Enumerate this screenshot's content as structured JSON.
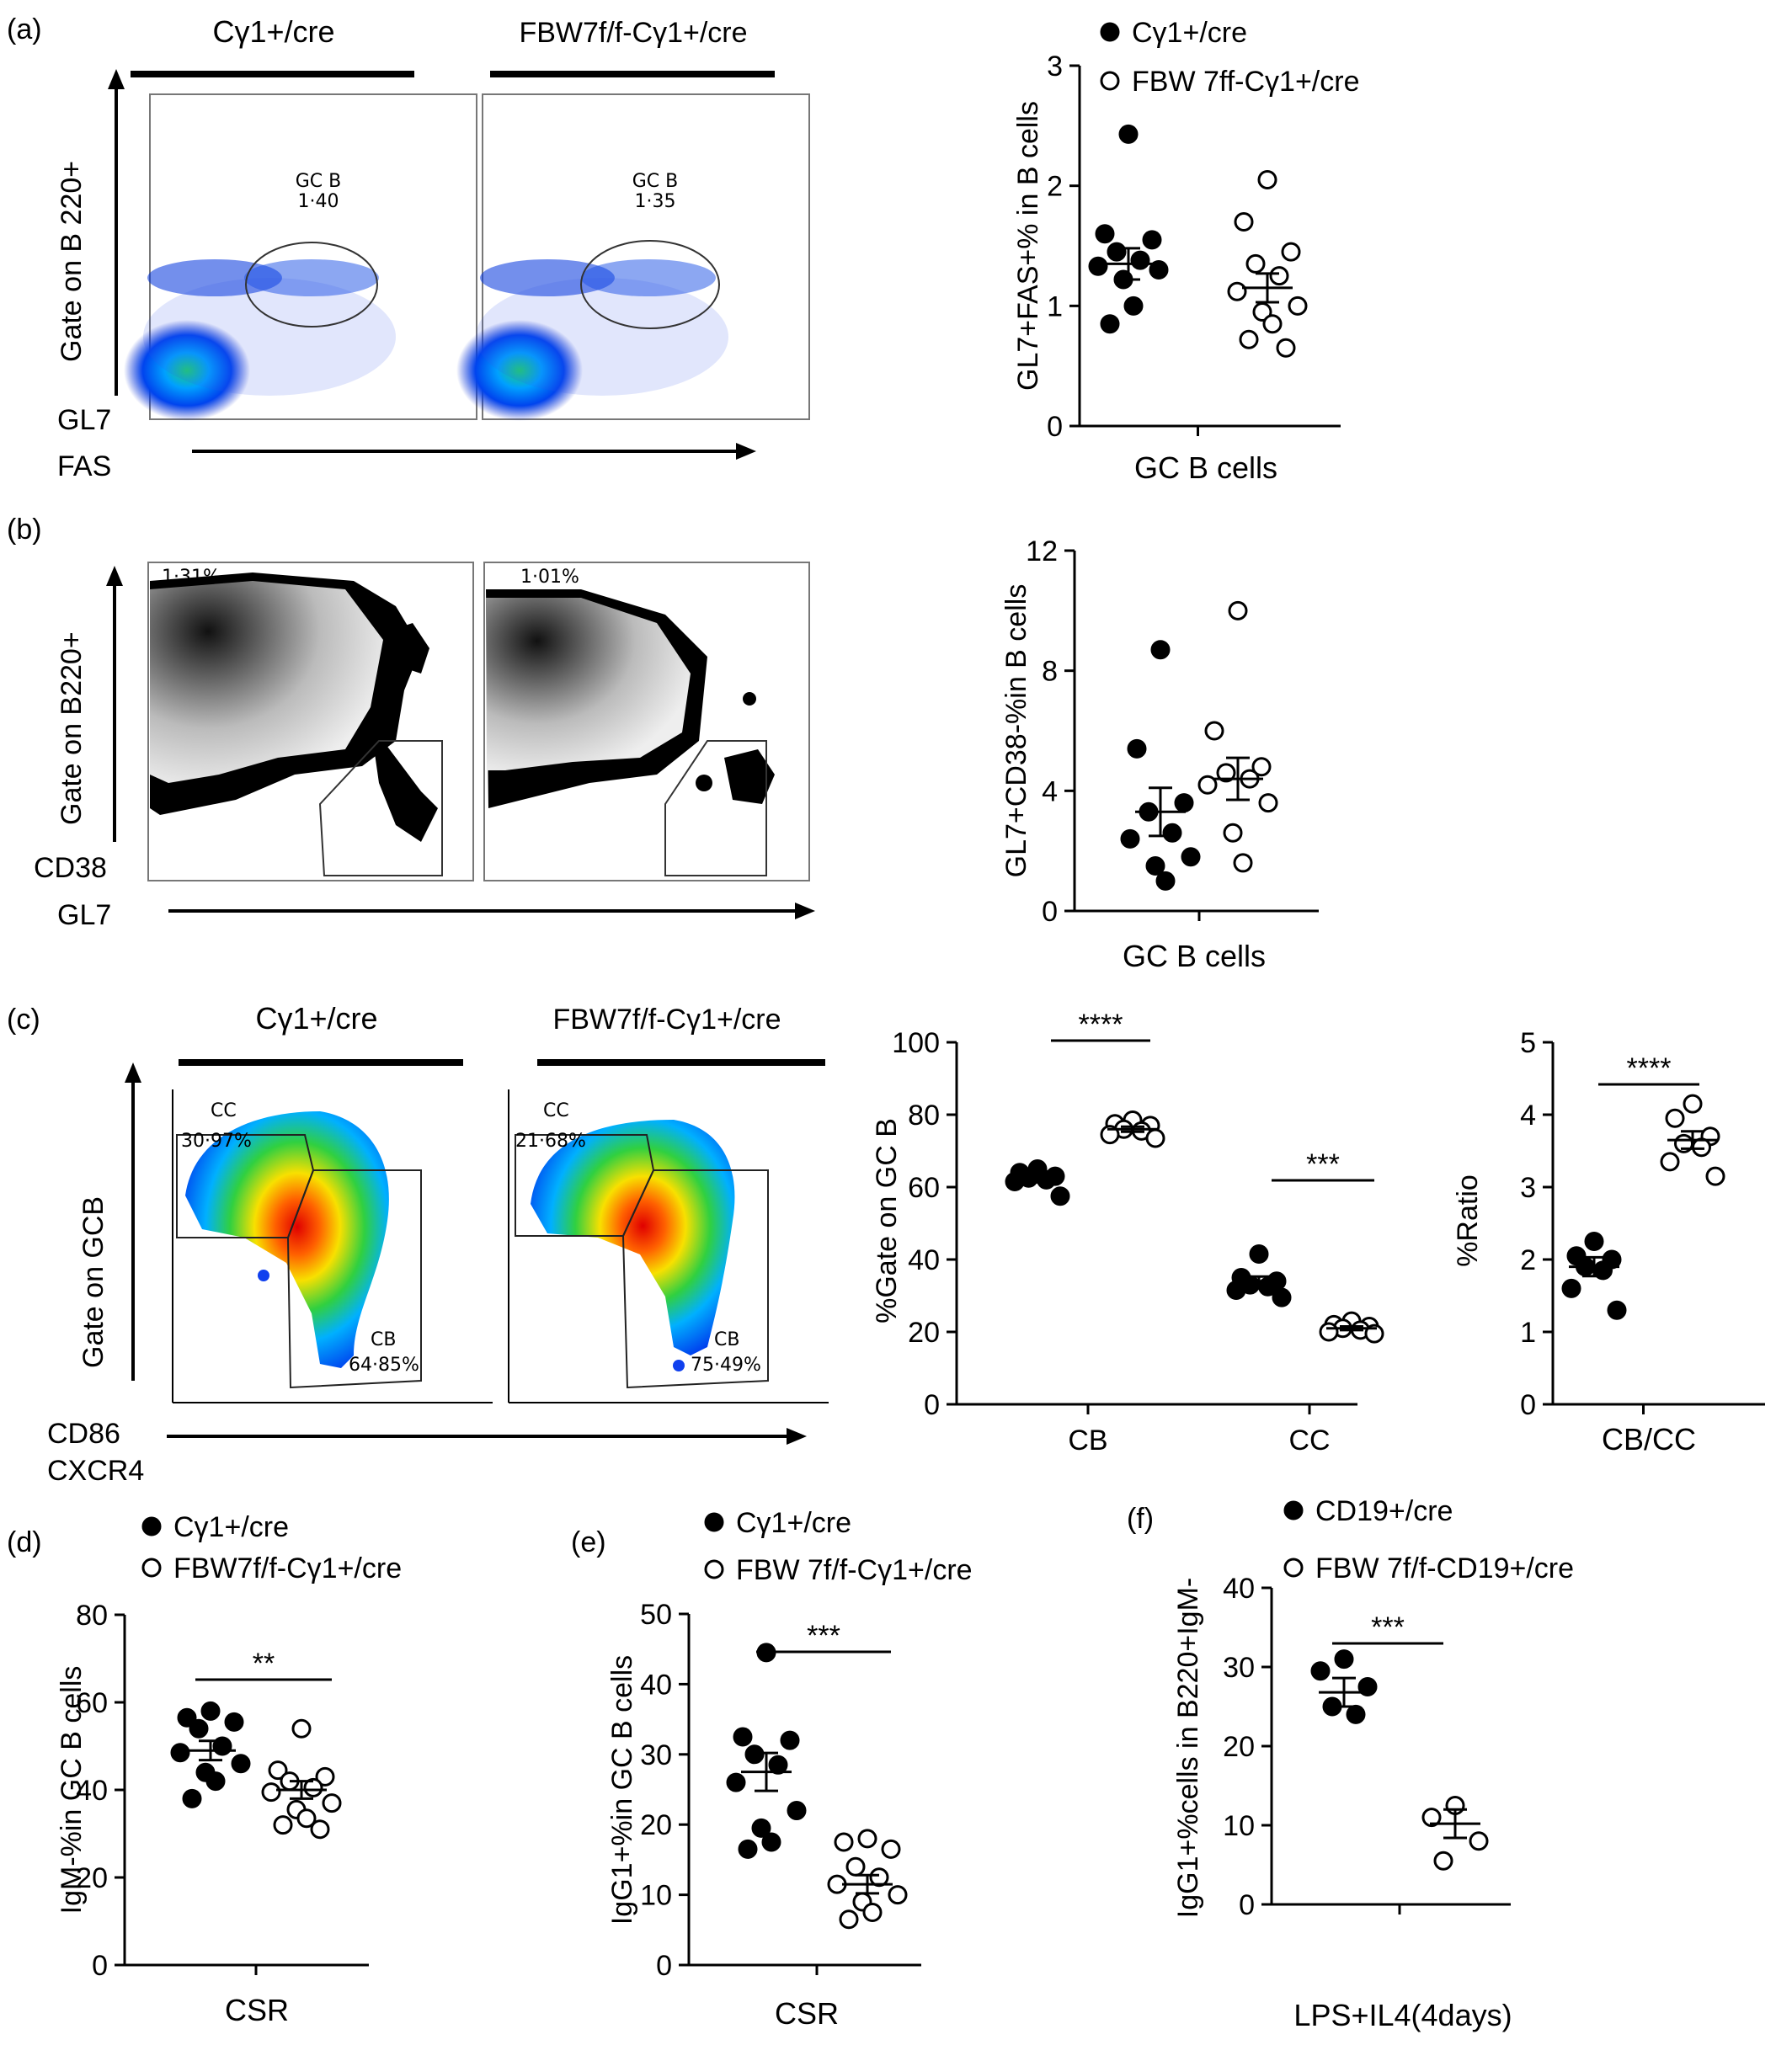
{
  "panels": {
    "a": {
      "label": "(a)"
    },
    "b": {
      "label": "(b)"
    },
    "c": {
      "label": "(c)"
    },
    "d": {
      "label": "(d)"
    },
    "e": {
      "label": "(e)"
    },
    "f": {
      "label": "(f)"
    }
  },
  "flow": {
    "a": {
      "group1": "Cγ1+/cre",
      "group2": "FBW7f/f-Cγ1+/cre",
      "ylabel": "Gate on B 220+",
      "ylabel_small": "GL7",
      "xlabel": "FAS",
      "gate_name_1": "GC B",
      "gate_value_1": "1·40",
      "gate_name_2": "GC B",
      "gate_value_2": "1·35"
    },
    "b": {
      "ylabel": "Gate on B220+",
      "ylabel_small": "CD38",
      "xlabel": "GL7",
      "value_1": "1·31%",
      "value_2": "1·01%"
    },
    "c": {
      "group1": "Cγ1+/cre",
      "group2": "FBW7f/f-Cγ1+/cre",
      "ylabel": "Gate on GCB",
      "ylabel_small_1": "CD86",
      "ylabel_small_2": "CXCR4",
      "cc_label_1": "CC",
      "cc_value_1": "30·97%",
      "cb_label_1": "CB",
      "cb_value_1": "64·85%",
      "cc_label_2": "CC",
      "cc_value_2": "21·68%",
      "cb_label_2": "CB",
      "cb_value_2": "75·49%"
    }
  },
  "chart_data": [
    {
      "id": "a-scatter",
      "type": "scatter",
      "xlabel": "GC B cells",
      "ylabel": "GL7+FAS+% in B cells",
      "ylim": [
        0,
        3
      ],
      "yticks": [
        "0",
        "1",
        "2",
        "3"
      ],
      "legend": [
        "Cγ1+/cre",
        "FBW 7ff-Cγ1+/cre"
      ],
      "series": [
        {
          "name": "Cγ1+/cre",
          "fill": "filled",
          "mean": 1.35,
          "sem": 0.13,
          "values": [
            2.43,
            1.6,
            1.55,
            1.45,
            1.38,
            1.33,
            1.3,
            1.22,
            1.0,
            0.85
          ]
        },
        {
          "name": "FBW 7ff-Cγ1+/cre",
          "fill": "open",
          "mean": 1.15,
          "sem": 0.12,
          "values": [
            2.05,
            1.7,
            1.45,
            1.35,
            1.25,
            1.12,
            1.0,
            0.95,
            0.85,
            0.72,
            0.65
          ]
        }
      ]
    },
    {
      "id": "b-scatter",
      "type": "scatter",
      "xlabel": "GC B cells",
      "ylabel": "GL7+CD38-%in B cells",
      "ylim": [
        0,
        12
      ],
      "yticks": [
        "0",
        "4",
        "8",
        "12"
      ],
      "series": [
        {
          "name": "Cγ1+/cre",
          "fill": "filled",
          "mean": 3.3,
          "sem": 0.8,
          "values": [
            8.7,
            5.4,
            3.6,
            3.3,
            2.6,
            2.4,
            1.8,
            1.5,
            1.0
          ]
        },
        {
          "name": "FBW7f/f-Cγ1+/cre",
          "fill": "open",
          "mean": 4.4,
          "sem": 0.7,
          "values": [
            10.0,
            6.0,
            4.8,
            4.6,
            4.4,
            4.2,
            3.6,
            2.6,
            1.6
          ]
        }
      ]
    },
    {
      "id": "c-percent",
      "type": "scatter",
      "categories": [
        "CB",
        "CC"
      ],
      "ylabel": "%Gate on GC B",
      "ylim": [
        0,
        100
      ],
      "yticks": [
        "0",
        "20",
        "40",
        "60",
        "80",
        "100"
      ],
      "significance": [
        "****",
        "***"
      ],
      "series": [
        {
          "name": "CB Cγ1+/cre",
          "fill": "filled",
          "mean": 62.5,
          "sem": 1.2,
          "values": [
            65.0,
            64.0,
            63.0,
            62.5,
            62.0,
            61.5,
            57.5
          ]
        },
        {
          "name": "CB FBW7f/f-Cγ1+/cre",
          "fill": "open",
          "mean": 76.0,
          "sem": 0.7,
          "values": [
            78.5,
            77.5,
            77.0,
            76.0,
            75.5,
            74.5,
            73.5
          ]
        },
        {
          "name": "CC Cγ1+/cre",
          "fill": "filled",
          "mean": 34.0,
          "sem": 1.3,
          "values": [
            41.5,
            35.0,
            34.0,
            33.0,
            32.5,
            31.5,
            29.5
          ]
        },
        {
          "name": "CC FBW7f/f-Cγ1+/cre",
          "fill": "open",
          "mean": 21.0,
          "sem": 0.5,
          "values": [
            23.0,
            22.0,
            21.5,
            21.0,
            20.5,
            20.0,
            19.5
          ]
        }
      ]
    },
    {
      "id": "c-ratio",
      "type": "scatter",
      "xlabel": "CB/CC",
      "ylabel": "%Ratio",
      "ylim": [
        0,
        5
      ],
      "yticks": [
        "0",
        "1",
        "2",
        "3",
        "4",
        "5"
      ],
      "significance": [
        "****"
      ],
      "series": [
        {
          "name": "Cγ1+/cre",
          "fill": "filled",
          "mean": 1.9,
          "sem": 0.13,
          "values": [
            2.25,
            2.05,
            2.0,
            1.9,
            1.85,
            1.6,
            1.3
          ]
        },
        {
          "name": "FBW7f/f-Cγ1+/cre",
          "fill": "open",
          "mean": 3.65,
          "sem": 0.12,
          "values": [
            4.15,
            3.95,
            3.7,
            3.6,
            3.55,
            3.35,
            3.15
          ]
        }
      ]
    },
    {
      "id": "d-scatter",
      "type": "scatter",
      "xlabel": "CSR",
      "ylabel": "IgM-%in GC B cells",
      "ylim": [
        0,
        80
      ],
      "yticks": [
        "0",
        "20",
        "40",
        "60",
        "80"
      ],
      "legend": [
        "Cγ1+/cre",
        "FBW7f/f-Cγ1+/cre"
      ],
      "significance": [
        "**"
      ],
      "series": [
        {
          "name": "Cγ1+/cre",
          "fill": "filled",
          "mean": 49.0,
          "sem": 2.2,
          "values": [
            58.0,
            56.5,
            55.5,
            54.0,
            50.0,
            48.5,
            46.0,
            44.0,
            42.0,
            38.0
          ]
        },
        {
          "name": "FBW7f/f-Cγ1+/cre",
          "fill": "open",
          "mean": 40.0,
          "sem": 2.0,
          "values": [
            54.0,
            44.5,
            43.0,
            42.0,
            40.5,
            39.5,
            37.0,
            35.5,
            33.5,
            32.0,
            31.0
          ]
        }
      ]
    },
    {
      "id": "e-scatter",
      "type": "scatter",
      "xlabel": "CSR",
      "ylabel": "IgG1+%in GC B cells",
      "ylim": [
        0,
        50
      ],
      "yticks": [
        "0",
        "10",
        "20",
        "30",
        "40",
        "50"
      ],
      "legend": [
        "Cγ1+/cre",
        "FBW 7f/f-Cγ1+/cre"
      ],
      "significance": [
        "***"
      ],
      "series": [
        {
          "name": "Cγ1+/cre",
          "fill": "filled",
          "mean": 27.5,
          "sem": 2.7,
          "values": [
            44.5,
            32.5,
            32.0,
            30.0,
            28.5,
            26.0,
            22.0,
            19.5,
            17.5,
            16.5
          ]
        },
        {
          "name": "FBW 7f/f-Cγ1+/cre",
          "fill": "open",
          "mean": 11.5,
          "sem": 1.3,
          "values": [
            18.0,
            17.5,
            16.5,
            14.0,
            12.5,
            11.5,
            10.0,
            9.0,
            7.5,
            6.5
          ]
        }
      ]
    },
    {
      "id": "f-scatter",
      "type": "scatter",
      "xlabel": "LPS+IL4(4days)",
      "ylabel": "IgG1+%cells in B220+IgM-",
      "ylim": [
        0,
        40
      ],
      "yticks": [
        "0",
        "10",
        "20",
        "30",
        "40"
      ],
      "legend": [
        "CD19+/cre",
        "FBW 7f/f-CD19+/cre"
      ],
      "significance": [
        "***"
      ],
      "series": [
        {
          "name": "CD19+/cre",
          "fill": "filled",
          "mean": 26.8,
          "sem": 1.8,
          "values": [
            31.0,
            29.5,
            27.5,
            25.0,
            24.0
          ]
        },
        {
          "name": "FBW 7f/f-CD19+/cre",
          "fill": "open",
          "mean": 10.2,
          "sem": 1.8,
          "values": [
            12.5,
            11.0,
            8.0,
            5.5
          ]
        }
      ]
    }
  ]
}
